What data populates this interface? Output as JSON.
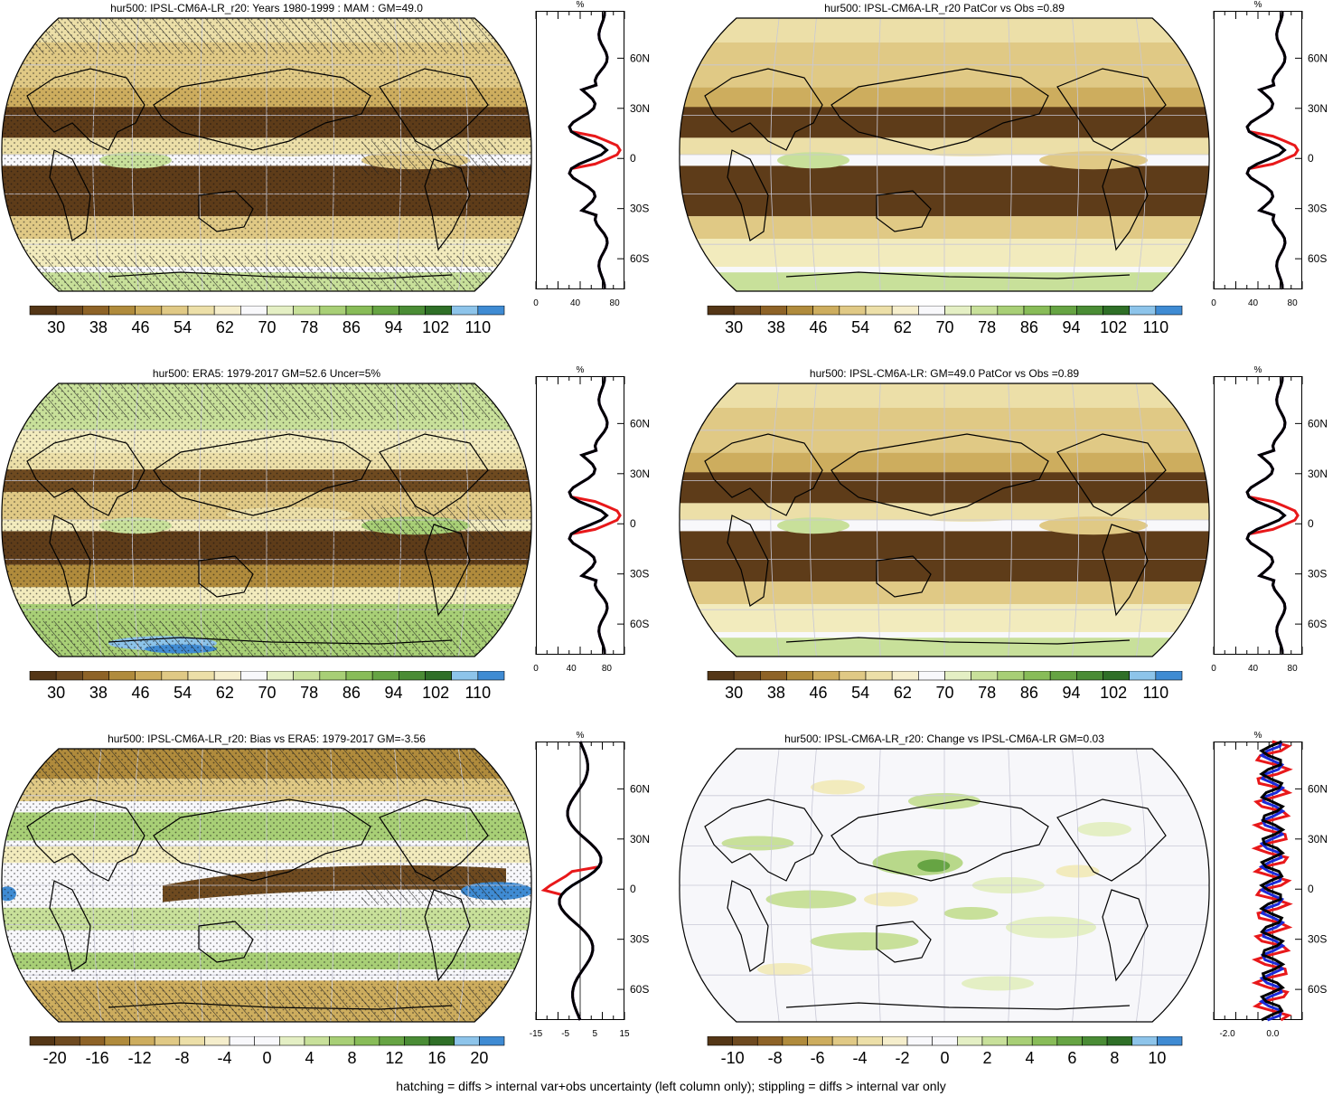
{
  "footer": "hatching = diffs > internal var+obs uncertainty (left column only); stippling = diffs > internal var only",
  "panels": [
    {
      "title": "hur500: IPSL-CM6A-LR_r20: Years 1980-1999 : MAM : GM=49.0",
      "type": "abs",
      "hatch": true,
      "stipple": true,
      "cbar_labels": [
        "30",
        "38",
        "46",
        "54",
        "62",
        "70",
        "78",
        "86",
        "94",
        "102",
        "110"
      ],
      "profile": {
        "unit": "%",
        "xticks": [
          "0",
          "40",
          "80"
        ],
        "xlim": [
          0,
          90
        ],
        "lat_labels": [
          "60N",
          "30N",
          "0",
          "30S",
          "60S"
        ]
      }
    },
    {
      "title": "hur500: IPSL-CM6A-LR_r20 PatCor vs Obs =0.89",
      "type": "abs",
      "hatch": false,
      "stipple": false,
      "cbar_labels": [
        "30",
        "38",
        "46",
        "54",
        "62",
        "70",
        "78",
        "86",
        "94",
        "102",
        "110"
      ],
      "profile": {
        "unit": "%",
        "xticks": [
          "0",
          "40",
          "80"
        ],
        "xlim": [
          0,
          90
        ],
        "lat_labels": [
          "60N",
          "30N",
          "0",
          "30S",
          "60S"
        ]
      }
    },
    {
      "title": "hur500: ERA5: 1979-2017 GM=52.6 Uncer=5%",
      "type": "obs",
      "hatch": true,
      "stipple": true,
      "cbar_labels": [
        "30",
        "38",
        "46",
        "54",
        "62",
        "70",
        "78",
        "86",
        "94",
        "102",
        "110"
      ],
      "profile": {
        "unit": "%",
        "xticks": [
          "0",
          "40",
          "80"
        ],
        "xlim": [
          0,
          100
        ],
        "lat_labels": [
          "60N",
          "30N",
          "0",
          "30S",
          "60S"
        ]
      }
    },
    {
      "title": "hur500: IPSL-CM6A-LR: GM=49.0 PatCor vs Obs =0.89",
      "type": "abs",
      "hatch": false,
      "stipple": false,
      "cbar_labels": [
        "30",
        "38",
        "46",
        "54",
        "62",
        "70",
        "78",
        "86",
        "94",
        "102",
        "110"
      ],
      "profile": {
        "unit": "%",
        "xticks": [
          "0",
          "40",
          "80"
        ],
        "xlim": [
          0,
          90
        ],
        "lat_labels": [
          "60N",
          "30N",
          "0",
          "30S",
          "60S"
        ]
      }
    },
    {
      "title": "hur500: IPSL-CM6A-LR_r20: Bias vs ERA5: 1979-2017 GM=-3.56",
      "type": "bias",
      "hatch": true,
      "stipple": true,
      "cbar_labels": [
        "-20",
        "-16",
        "-12",
        "-8",
        "-4",
        "0",
        "4",
        "8",
        "12",
        "16",
        "20"
      ],
      "profile": {
        "unit": "%",
        "xticks": [
          "-15",
          "-5",
          "5",
          "15"
        ],
        "xlim": [
          -15,
          15
        ],
        "lat_labels": [
          "60N",
          "30N",
          "0",
          "30S",
          "60S"
        ]
      }
    },
    {
      "title": "hur500: IPSL-CM6A-LR_r20: Change vs IPSL-CM6A-LR GM=0.03",
      "type": "change",
      "hatch": false,
      "stipple": false,
      "cbar_labels": [
        "-10",
        "-8",
        "-6",
        "-4",
        "-2",
        "0",
        "2",
        "4",
        "6",
        "8",
        "10"
      ],
      "profile": {
        "unit": "%",
        "xticks": [
          "-2.0",
          "0.0"
        ],
        "xlim": [
          -2.6,
          1.3
        ],
        "lat_labels": [
          "60N",
          "30N",
          "0",
          "30S",
          "60S"
        ]
      }
    }
  ],
  "colors": {
    "brown_dark": "#5e3c19",
    "tan": "#d8b76a",
    "cream": "#f2ebbd",
    "white": "#f6f6fa",
    "green_light": "#b8d88a",
    "green": "#7cb648",
    "blue": "#3f8bd3",
    "line_red": "#e8181a",
    "line_blue": "#1b2ad8",
    "line_black": "#000000"
  }
}
